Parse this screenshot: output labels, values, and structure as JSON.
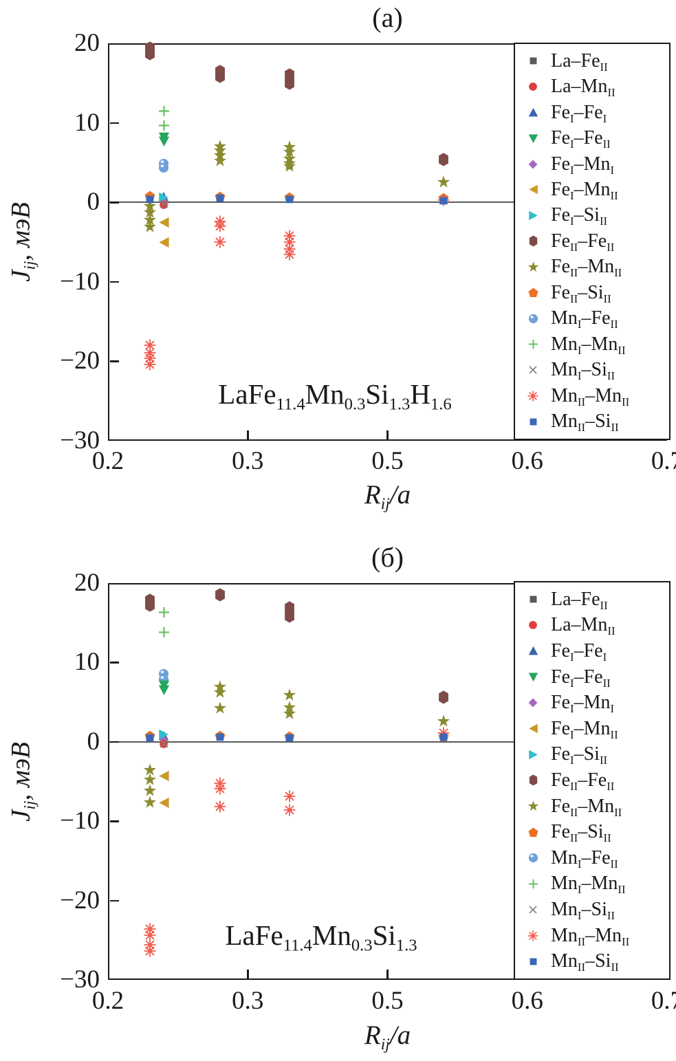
{
  "figure": {
    "y_axis": {
      "label_segments": [
        {
          "t": "J",
          "i": true,
          "sub": "ij"
        },
        {
          "t": ", мэВ",
          "i": false
        }
      ],
      "tick_labels": [
        "20",
        "10",
        "0",
        "−10",
        "−20",
        "−30"
      ],
      "tick_values": [
        20,
        10,
        0,
        -10,
        -20,
        -30
      ],
      "range": [
        -30,
        20
      ]
    },
    "x_axis": {
      "label_segments": [
        {
          "t": "R",
          "i": true,
          "sub": "ij"
        },
        {
          "t": "/",
          "i": true
        },
        {
          "t": "a",
          "i": true
        }
      ],
      "tick_labels": [
        "0.2",
        "0.3",
        "0.5",
        "0.6",
        "0.7"
      ],
      "tick_values": [
        0.2,
        0.3,
        0.5,
        0.6,
        0.7
      ]
    },
    "legend": {
      "entries": [
        {
          "key": "La-FeII",
          "marker": "square",
          "color": "#5a5a5a",
          "label": [
            {
              "t": "La–Fe",
              "sub": "II"
            }
          ]
        },
        {
          "key": "La-MnII",
          "marker": "circle",
          "color": "#df3e3e",
          "label": [
            {
              "t": "La–Mn",
              "sub": "II"
            }
          ]
        },
        {
          "key": "FeI-FeI",
          "marker": "triangle-up",
          "color": "#3c64ae",
          "label": [
            {
              "t": "Fe",
              "sub": "I"
            },
            {
              "t": "–Fe",
              "sub": "I"
            }
          ]
        },
        {
          "key": "FeI-FeII",
          "marker": "triangle-down",
          "color": "#26a55d",
          "label": [
            {
              "t": "Fe",
              "sub": "I"
            },
            {
              "t": "–Fe",
              "sub": "II"
            }
          ]
        },
        {
          "key": "FeI-MnI",
          "marker": "diamond",
          "color": "#a569c0",
          "label": [
            {
              "t": "Fe",
              "sub": "I"
            },
            {
              "t": "–Mn",
              "sub": "I"
            }
          ]
        },
        {
          "key": "FeI-MnII",
          "marker": "triangle-left",
          "color": "#cc9929",
          "label": [
            {
              "t": "Fe",
              "sub": "I"
            },
            {
              "t": "–Mn",
              "sub": "II"
            }
          ]
        },
        {
          "key": "FeI-SiII",
          "marker": "triangle-right",
          "color": "#2fbecb",
          "label": [
            {
              "t": "Fe",
              "sub": "I"
            },
            {
              "t": "–Si",
              "sub": "II"
            }
          ]
        },
        {
          "key": "FeII-FeII",
          "marker": "hexagon",
          "color": "#7e4b49",
          "label": [
            {
              "t": "Fe",
              "sub": "II"
            },
            {
              "t": "–Fe",
              "sub": "II"
            }
          ]
        },
        {
          "key": "FeII-MnII",
          "marker": "star",
          "color": "#8b8b30",
          "label": [
            {
              "t": "Fe",
              "sub": "II"
            },
            {
              "t": "–Mn",
              "sub": "II"
            }
          ]
        },
        {
          "key": "FeII-SiII",
          "marker": "pentagon",
          "color": "#ec7123",
          "label": [
            {
              "t": "Fe",
              "sub": "II"
            },
            {
              "t": "–Si",
              "sub": "II"
            }
          ]
        },
        {
          "key": "MnI-FeII",
          "marker": "sphere",
          "color": "#70a0d8",
          "label": [
            {
              "t": "Mn",
              "sub": "I"
            },
            {
              "t": "–Fe",
              "sub": "II"
            }
          ]
        },
        {
          "key": "MnI-MnII",
          "marker": "plus",
          "color": "#68c05e",
          "label": [
            {
              "t": "Mn",
              "sub": "I"
            },
            {
              "t": "–Mn",
              "sub": "II"
            }
          ]
        },
        {
          "key": "MnI-SiII",
          "marker": "x",
          "color": "#7d7d7d",
          "label": [
            {
              "t": "Mn",
              "sub": "I"
            },
            {
              "t": "–Si",
              "sub": "II"
            }
          ]
        },
        {
          "key": "MnII-MnII",
          "marker": "asterisk",
          "color": "#f2594b",
          "label": [
            {
              "t": "Mn",
              "sub": "II"
            },
            {
              "t": "–Mn",
              "sub": "II"
            }
          ]
        },
        {
          "key": "MnII-SiII",
          "marker": "square",
          "color": "#3b67b8",
          "label": [
            {
              "t": "Mn",
              "sub": "II"
            },
            {
              "t": "–Si",
              "sub": "II"
            }
          ]
        }
      ]
    },
    "render_order": [
      "La-FeII",
      "FeI-FeI",
      "FeI-MnI",
      "FeII-SiII",
      "MnI-FeII",
      "MnI-MnII",
      "FeII-FeII",
      "FeII-MnII",
      "MnII-MnII",
      "FeI-FeII",
      "FeI-MnII",
      "FeI-SiII",
      "La-MnII",
      "MnI-SiII",
      "MnII-SiII"
    ],
    "chart_data": [
      {
        "type": "scatter",
        "panel": "(a)",
        "title": "(a)",
        "compound_plain": "LaFe11.4Mn0.3Si1.3H1.6",
        "compound_segments": [
          {
            "t": "LaFe",
            "sub": "11.4"
          },
          {
            "t": "Mn",
            "sub": "0.3"
          },
          {
            "t": "Si",
            "sub": "1.3"
          },
          {
            "t": "H",
            "sub": "1.6"
          }
        ],
        "xlabel": "R_ij/a",
        "ylabel": "J_ij, мэВ",
        "x_ticks": [
          0.2,
          0.3,
          0.5,
          0.6,
          0.7
        ],
        "ylim": [
          -30,
          20
        ],
        "series": [
          {
            "name": "La-FeII",
            "points": [
              [
                0.23,
                0.4
              ]
            ]
          },
          {
            "name": "La-MnII",
            "points": [
              [
                0.24,
                -0.3
              ]
            ]
          },
          {
            "name": "FeI-FeI",
            "points": [
              [
                0.24,
                0.7
              ]
            ]
          },
          {
            "name": "FeI-FeII",
            "points": [
              [
                0.24,
                8.2
              ],
              [
                0.24,
                7.7
              ]
            ]
          },
          {
            "name": "FeI-MnI",
            "points": [
              [
                0.24,
                0.2
              ]
            ]
          },
          {
            "name": "FeI-MnII",
            "points": [
              [
                0.24,
                -2.5
              ],
              [
                0.24,
                -5.0
              ]
            ]
          },
          {
            "name": "FeI-SiII",
            "points": [
              [
                0.24,
                0.6
              ]
            ]
          },
          {
            "name": "FeII-FeII",
            "points": [
              [
                0.23,
                19.4
              ],
              [
                0.23,
                18.7
              ],
              [
                0.28,
                16.4
              ],
              [
                0.28,
                15.8
              ],
              [
                0.36,
                16.0
              ],
              [
                0.36,
                15.0
              ],
              [
                0.54,
                5.4
              ]
            ]
          },
          {
            "name": "FeII-MnII",
            "points": [
              [
                0.23,
                -0.5
              ],
              [
                0.23,
                -1.3
              ],
              [
                0.23,
                -2.2
              ],
              [
                0.23,
                -3.1
              ],
              [
                0.28,
                7.0
              ],
              [
                0.28,
                6.5
              ],
              [
                0.28,
                5.9
              ],
              [
                0.28,
                5.2
              ],
              [
                0.36,
                6.9
              ],
              [
                0.36,
                6.3
              ],
              [
                0.36,
                5.5
              ],
              [
                0.36,
                4.9
              ],
              [
                0.36,
                4.5
              ],
              [
                0.54,
                2.5
              ]
            ]
          },
          {
            "name": "FeII-SiII",
            "points": [
              [
                0.23,
                0.8
              ],
              [
                0.28,
                0.7
              ],
              [
                0.36,
                0.6
              ],
              [
                0.54,
                0.5
              ]
            ]
          },
          {
            "name": "MnI-FeII",
            "points": [
              [
                0.24,
                4.9
              ],
              [
                0.24,
                4.3
              ]
            ]
          },
          {
            "name": "MnI-MnII",
            "points": [
              [
                0.24,
                11.5
              ],
              [
                0.24,
                9.7
              ]
            ]
          },
          {
            "name": "MnI-SiII",
            "points": [
              [
                0.24,
                -0.2
              ]
            ]
          },
          {
            "name": "MnII-MnII",
            "points": [
              [
                0.23,
                -18.0
              ],
              [
                0.23,
                -18.9
              ],
              [
                0.23,
                -19.6
              ],
              [
                0.23,
                -20.4
              ],
              [
                0.28,
                -2.4
              ],
              [
                0.28,
                -3.0
              ],
              [
                0.28,
                -5.0
              ],
              [
                0.36,
                -4.2
              ],
              [
                0.36,
                -5.0
              ],
              [
                0.36,
                -5.9
              ],
              [
                0.36,
                -6.6
              ],
              [
                0.54,
                0.3
              ]
            ]
          },
          {
            "name": "MnII-SiII",
            "points": [
              [
                0.23,
                0.4
              ],
              [
                0.28,
                0.5
              ],
              [
                0.36,
                0.35
              ],
              [
                0.54,
                0.2
              ]
            ]
          }
        ]
      },
      {
        "type": "scatter",
        "panel": "(б)",
        "title": "(б)",
        "compound_plain": "LaFe11.4Mn0.3Si1.3",
        "compound_segments": [
          {
            "t": "LaFe",
            "sub": "11.4"
          },
          {
            "t": "Mn",
            "sub": "0.3"
          },
          {
            "t": "Si",
            "sub": "1.3"
          }
        ],
        "xlabel": "R_ij/a",
        "ylabel": "J_ij, мэВ",
        "x_ticks": [
          0.2,
          0.3,
          0.5,
          0.6,
          0.7
        ],
        "ylim": [
          -30,
          20
        ],
        "series": [
          {
            "name": "La-FeII",
            "points": [
              [
                0.23,
                0.4
              ]
            ]
          },
          {
            "name": "La-MnII",
            "points": [
              [
                0.24,
                -0.3
              ]
            ]
          },
          {
            "name": "FeI-FeI",
            "points": [
              [
                0.24,
                0.8
              ]
            ]
          },
          {
            "name": "FeI-FeII",
            "points": [
              [
                0.24,
                7.1
              ],
              [
                0.24,
                6.5
              ]
            ]
          },
          {
            "name": "FeI-MnI",
            "points": [
              [
                0.24,
                0.2
              ]
            ]
          },
          {
            "name": "FeI-MnII",
            "points": [
              [
                0.24,
                -4.3
              ],
              [
                0.24,
                -7.7
              ]
            ]
          },
          {
            "name": "FeI-SiII",
            "points": [
              [
                0.24,
                0.9
              ]
            ]
          },
          {
            "name": "FeII-FeII",
            "points": [
              [
                0.23,
                17.8
              ],
              [
                0.23,
                17.2
              ],
              [
                0.28,
                18.5
              ],
              [
                0.36,
                16.9
              ],
              [
                0.36,
                15.8
              ],
              [
                0.54,
                5.6
              ]
            ]
          },
          {
            "name": "FeII-MnII",
            "points": [
              [
                0.23,
                -3.6
              ],
              [
                0.23,
                -4.8
              ],
              [
                0.23,
                -6.2
              ],
              [
                0.23,
                -7.6
              ],
              [
                0.28,
                6.9
              ],
              [
                0.28,
                6.2
              ],
              [
                0.28,
                4.2
              ],
              [
                0.36,
                5.9
              ],
              [
                0.36,
                4.3
              ],
              [
                0.36,
                3.5
              ],
              [
                0.54,
                2.6
              ]
            ]
          },
          {
            "name": "FeII-SiII",
            "points": [
              [
                0.23,
                0.8
              ],
              [
                0.28,
                0.8
              ],
              [
                0.36,
                0.7
              ],
              [
                0.54,
                0.7
              ]
            ]
          },
          {
            "name": "MnI-FeII",
            "points": [
              [
                0.24,
                8.6
              ],
              [
                0.24,
                7.9
              ]
            ]
          },
          {
            "name": "MnI-MnII",
            "points": [
              [
                0.24,
                16.3
              ],
              [
                0.24,
                13.8
              ]
            ]
          },
          {
            "name": "MnI-SiII",
            "points": [
              [
                0.24,
                -0.2
              ]
            ]
          },
          {
            "name": "MnII-MnII",
            "points": [
              [
                0.23,
                -23.6
              ],
              [
                0.23,
                -24.4
              ],
              [
                0.23,
                -25.6
              ],
              [
                0.23,
                -26.4
              ],
              [
                0.28,
                -5.2
              ],
              [
                0.28,
                -5.9
              ],
              [
                0.28,
                -8.2
              ],
              [
                0.36,
                -6.9
              ],
              [
                0.36,
                -8.6
              ],
              [
                0.54,
                1.1
              ]
            ]
          },
          {
            "name": "MnII-SiII",
            "points": [
              [
                0.23,
                0.5
              ],
              [
                0.28,
                0.6
              ],
              [
                0.36,
                0.5
              ],
              [
                0.54,
                0.6
              ]
            ]
          }
        ]
      }
    ]
  }
}
